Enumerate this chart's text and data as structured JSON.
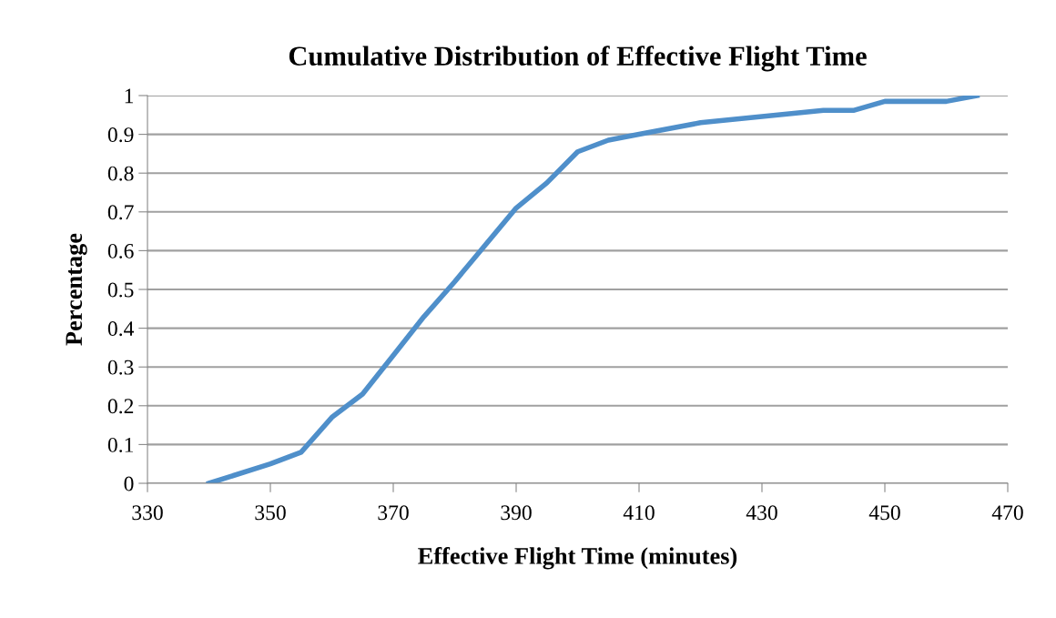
{
  "chart_data": {
    "type": "line",
    "title": "Cumulative Distribution of Effective Flight Time",
    "xlabel": "Effective Flight Time (minutes)",
    "ylabel": "Percentage",
    "x": [
      340,
      350,
      355,
      360,
      365,
      370,
      375,
      380,
      385,
      390,
      395,
      400,
      405,
      410,
      420,
      440,
      445,
      450,
      460,
      465
    ],
    "series": [
      {
        "color": "#4f8fca",
        "values": [
          0,
          0.05,
          0.08,
          0.17,
          0.23,
          0.33,
          0.43,
          0.52,
          0.615,
          0.71,
          0.775,
          0.855,
          0.885,
          0.9,
          0.93,
          0.962,
          0.962,
          0.985,
          0.985,
          1
        ]
      }
    ],
    "xlim": [
      330,
      470
    ],
    "xticks": [
      330,
      350,
      370,
      390,
      410,
      430,
      450,
      470
    ],
    "ylim": [
      0,
      1
    ],
    "yticks": [
      0,
      {
        "value": 0.1,
        "label": "0.1"
      },
      {
        "value": 0.2,
        "label": "0.2"
      },
      {
        "value": 0.3,
        "label": "0.3"
      },
      {
        "value": 0.4,
        "label": "0.4"
      },
      {
        "value": 0.5,
        "label": "0.5"
      },
      {
        "value": 0.6,
        "label": "0.6"
      },
      {
        "value": 0.7,
        "label": "0.7"
      },
      {
        "value": 0.8,
        "label": "0.8"
      },
      {
        "value": 0.9,
        "label": "0.9"
      },
      1
    ],
    "grid": "y",
    "legend": false,
    "marker": "none",
    "line_style": "solid"
  }
}
